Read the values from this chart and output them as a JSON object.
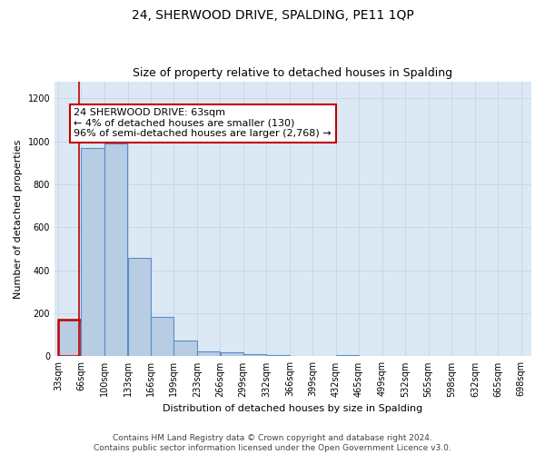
{
  "title": "24, SHERWOOD DRIVE, SPALDING, PE11 1QP",
  "subtitle": "Size of property relative to detached houses in Spalding",
  "xlabel": "Distribution of detached houses by size in Spalding",
  "ylabel": "Number of detached properties",
  "footer_line1": "Contains HM Land Registry data © Crown copyright and database right 2024.",
  "footer_line2": "Contains public sector information licensed under the Open Government Licence v3.0.",
  "annotation_title": "24 SHERWOOD DRIVE: 63sqm",
  "annotation_line1": "← 4% of detached houses are smaller (130)",
  "annotation_line2": "96% of semi-detached houses are larger (2,768) →",
  "property_size_sqm": 63,
  "bar_edges": [
    33,
    66,
    100,
    133,
    166,
    199,
    233,
    266,
    299,
    332,
    366,
    399,
    432,
    465,
    499,
    532,
    565,
    598,
    632,
    665,
    698
  ],
  "bar_heights": [
    170,
    970,
    990,
    460,
    185,
    75,
    25,
    20,
    12,
    8,
    0,
    0,
    8,
    0,
    0,
    0,
    0,
    0,
    0,
    0
  ],
  "bar_color": "#b8cce4",
  "bar_edgecolor": "#5a8dc8",
  "bar_linewidth": 0.8,
  "highlight_bar_index": 0,
  "highlight_color": "#c00000",
  "annotation_box_edgecolor": "#c00000",
  "annotation_box_facecolor": "#ffffff",
  "grid_color": "#c8d8e8",
  "bg_color": "#dce9f5",
  "ylim": [
    0,
    1280
  ],
  "yticks": [
    0,
    200,
    400,
    600,
    800,
    1000,
    1200
  ],
  "title_fontsize": 10,
  "subtitle_fontsize": 9,
  "label_fontsize": 8,
  "tick_fontsize": 7,
  "annotation_fontsize": 8,
  "footer_fontsize": 6.5
}
